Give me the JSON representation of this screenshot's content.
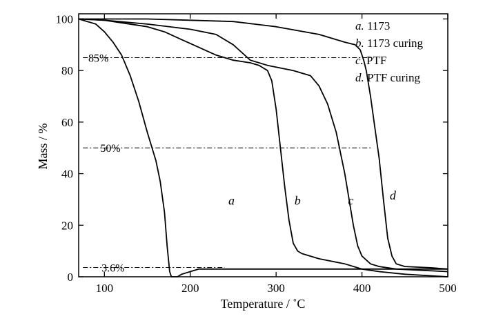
{
  "chart_data": {
    "type": "line",
    "xlabel": "Temperature / ˚C",
    "ylabel": "Mass / %",
    "xlim": [
      70,
      500
    ],
    "ylim": [
      0,
      102
    ],
    "x_ticks": [
      100,
      200,
      300,
      400,
      500
    ],
    "y_ticks": [
      0,
      20,
      40,
      60,
      80,
      100
    ],
    "grid": false,
    "legend_position": "top-right",
    "legend": [
      {
        "letter": "a.",
        "text": " 1173"
      },
      {
        "letter": "b.",
        "text": " 1173 curing"
      },
      {
        "letter": "c.",
        "text": " PTF"
      },
      {
        "letter": "d.",
        "text": " PTF curing"
      }
    ],
    "series": [
      {
        "name": "a",
        "label": "a",
        "label_at": [
          248,
          28
        ],
        "points": [
          [
            70,
            100
          ],
          [
            90,
            98
          ],
          [
            100,
            95
          ],
          [
            110,
            91
          ],
          [
            120,
            86
          ],
          [
            130,
            78
          ],
          [
            140,
            68
          ],
          [
            150,
            56
          ],
          [
            160,
            45
          ],
          [
            165,
            37
          ],
          [
            170,
            25
          ],
          [
            173,
            12
          ],
          [
            176,
            2
          ],
          [
            178,
            0
          ],
          [
            185,
            0
          ],
          [
            190,
            1
          ],
          [
            200,
            2
          ],
          [
            210,
            3
          ],
          [
            230,
            3
          ],
          [
            400,
            3
          ],
          [
            450,
            3
          ],
          [
            500,
            3
          ]
        ]
      },
      {
        "name": "b",
        "label": "b",
        "label_at": [
          325,
          28
        ],
        "points": [
          [
            70,
            100
          ],
          [
            100,
            99.5
          ],
          [
            150,
            97
          ],
          [
            170,
            95
          ],
          [
            190,
            92
          ],
          [
            210,
            89
          ],
          [
            230,
            86
          ],
          [
            250,
            84
          ],
          [
            270,
            83
          ],
          [
            280,
            82
          ],
          [
            290,
            80
          ],
          [
            295,
            76
          ],
          [
            300,
            65
          ],
          [
            305,
            50
          ],
          [
            310,
            35
          ],
          [
            315,
            22
          ],
          [
            320,
            13
          ],
          [
            325,
            10
          ],
          [
            330,
            9
          ],
          [
            350,
            7
          ],
          [
            380,
            5
          ],
          [
            400,
            3
          ],
          [
            420,
            2
          ],
          [
            450,
            1
          ],
          [
            500,
            0
          ]
        ]
      },
      {
        "name": "c",
        "label": "c",
        "label_at": [
          387,
          28
        ],
        "points": [
          [
            70,
            100
          ],
          [
            100,
            99.5
          ],
          [
            150,
            98
          ],
          [
            200,
            96
          ],
          [
            230,
            94
          ],
          [
            250,
            90
          ],
          [
            260,
            87
          ],
          [
            270,
            84
          ],
          [
            290,
            82
          ],
          [
            320,
            80
          ],
          [
            340,
            78
          ],
          [
            350,
            74
          ],
          [
            360,
            67
          ],
          [
            370,
            56
          ],
          [
            375,
            48
          ],
          [
            380,
            40
          ],
          [
            385,
            30
          ],
          [
            390,
            20
          ],
          [
            395,
            12
          ],
          [
            400,
            8
          ],
          [
            410,
            5
          ],
          [
            420,
            4
          ],
          [
            440,
            3
          ],
          [
            500,
            2
          ]
        ]
      },
      {
        "name": "d",
        "label": "d",
        "label_at": [
          436,
          30
        ],
        "points": [
          [
            70,
            100
          ],
          [
            100,
            100
          ],
          [
            150,
            100
          ],
          [
            200,
            99.5
          ],
          [
            250,
            99
          ],
          [
            300,
            97
          ],
          [
            350,
            94
          ],
          [
            380,
            91
          ],
          [
            392,
            90
          ],
          [
            398,
            88
          ],
          [
            402,
            84
          ],
          [
            405,
            80
          ],
          [
            410,
            70
          ],
          [
            415,
            58
          ],
          [
            420,
            46
          ],
          [
            425,
            30
          ],
          [
            430,
            15
          ],
          [
            435,
            8
          ],
          [
            440,
            5
          ],
          [
            450,
            4
          ],
          [
            480,
            3.5
          ],
          [
            500,
            3
          ]
        ]
      }
    ],
    "reference_lines": [
      {
        "label": "85%",
        "y": 85,
        "x_from": 75,
        "x_to": 410,
        "label_x": 93
      },
      {
        "label": "50%",
        "y": 50,
        "x_from": 75,
        "x_to": 412,
        "label_x": 107
      },
      {
        "label": "3.6%",
        "y": 3.6,
        "x_from": 75,
        "x_to": 240,
        "label_x": 110
      }
    ]
  }
}
